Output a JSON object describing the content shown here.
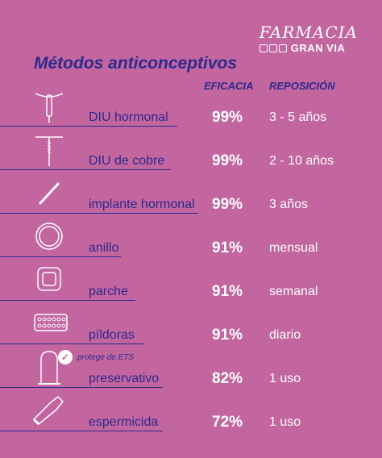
{
  "logo": {
    "line1": "FARMACIA",
    "line2": "GRAN VIA"
  },
  "title": "Métodos anticonceptivos",
  "headers": {
    "efficacy": "EFICACIA",
    "replacement": "REPOSICIÓN"
  },
  "ets_note": "protege de ETS",
  "methods": [
    {
      "icon": "iud-hormonal-icon",
      "name": "DIU hormonal",
      "efficacy": "99%",
      "replacement": "3 - 5 años"
    },
    {
      "icon": "iud-copper-icon",
      "name": "DIU de cobre",
      "efficacy": "99%",
      "replacement": "2 - 10 años"
    },
    {
      "icon": "implant-icon",
      "name": "implante hormonal",
      "efficacy": "99%",
      "replacement": "3 años"
    },
    {
      "icon": "ring-icon",
      "name": "anillo",
      "efficacy": "91%",
      "replacement": "mensual"
    },
    {
      "icon": "patch-icon",
      "name": "parche",
      "efficacy": "91%",
      "replacement": "semanal"
    },
    {
      "icon": "pills-icon",
      "name": "píldoras",
      "efficacy": "91%",
      "replacement": "diario"
    },
    {
      "icon": "condom-icon",
      "name": "preservativo",
      "efficacy": "82%",
      "replacement": "1 uso"
    },
    {
      "icon": "spermicide-tube-icon",
      "name": "espermicida",
      "efficacy": "72%",
      "replacement": "1 uso"
    }
  ]
}
